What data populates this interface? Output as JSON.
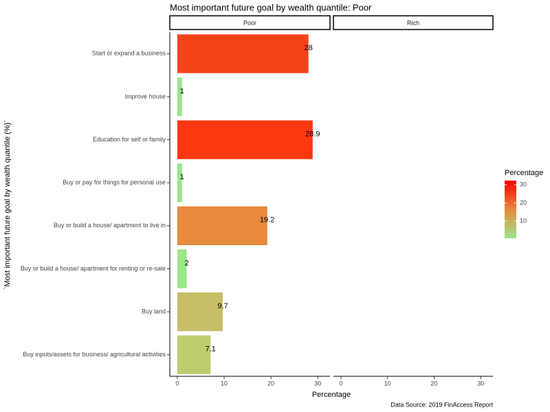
{
  "chart_data": {
    "type": "bar",
    "orientation": "horizontal",
    "title": "Most important future goal by wealth quantile: Poor",
    "x_label": "Percentage",
    "y_label": "`Most important future goal by wealth quantile (%)`",
    "caption": "Data Source: 2019 FinAccess Report",
    "facets": [
      "Poor",
      "Rich"
    ],
    "categories": [
      "Start or expand a business",
      "Improve house",
      "Education for self or family",
      "Buy or pay for things for personal use",
      "Buy or build a house/ apartment to live in",
      "Buy or build a house/ apartment for renting or re-sale",
      "Buy land",
      "Buy inputs/assets for business/ agricultural activities"
    ],
    "values": [
      28,
      1,
      28.9,
      1,
      19.2,
      2,
      9.7,
      7.1
    ],
    "colors": [
      "#f5441a",
      "#98e68c",
      "#fc3810",
      "#98e68c",
      "#e8893c",
      "#9be787",
      "#c8be66",
      "#bccd6f"
    ],
    "xlim": [
      -1.6,
      32.6
    ],
    "xticks": [
      0,
      10,
      20,
      30
    ],
    "legend": {
      "title": "Percentage",
      "colors": [
        "#98e68c",
        "#e8893c",
        "#ff0000"
      ],
      "lim": [
        0.6,
        32.3
      ],
      "ticks": [
        10,
        20,
        30
      ]
    }
  }
}
